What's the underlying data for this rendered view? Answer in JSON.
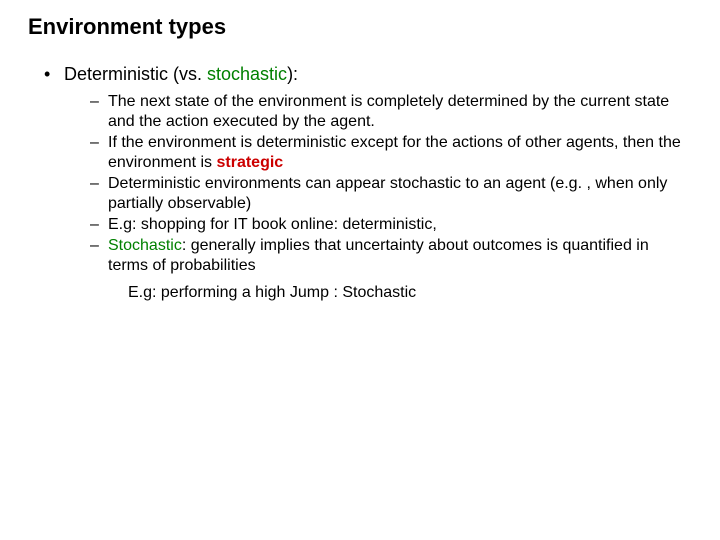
{
  "title": {
    "word1": "Environment",
    "word2": " types",
    "color_word1": "#000000",
    "color_rest": "#000000",
    "fontsize": 22,
    "fontweight": "bold"
  },
  "colors": {
    "green": "#008000",
    "red": "#cc0000",
    "black": "#000000",
    "background": "#ffffff"
  },
  "typography": {
    "family": "Verdana, Geneva, sans-serif",
    "l1_fontsize": 18,
    "l2_fontsize": 16
  },
  "level1": {
    "marker": "•",
    "pre": "Deterministic (vs. ",
    "keyword": "stochastic",
    "post": "):"
  },
  "level2": {
    "marker": "–",
    "items": [
      {
        "text": "The next state of the environment is completely determined by the current state and the action executed by the agent."
      },
      {
        "pre": "If the environment is deterministic except for the actions of other agents, then the environment is ",
        "keyword": "strategic"
      },
      {
        "text": "Deterministic environments can appear stochastic to an agent (e.g. , when only partially observable)"
      },
      {
        "text": "E.g: shopping for IT book online: deterministic,"
      },
      {
        "pre2_keyword": "Stochastic",
        "post2": ": generally implies that uncertainty about outcomes is quantified in terms of probabilities"
      }
    ]
  },
  "example": {
    "text": "E.g: performing a high Jump : Stochastic"
  }
}
